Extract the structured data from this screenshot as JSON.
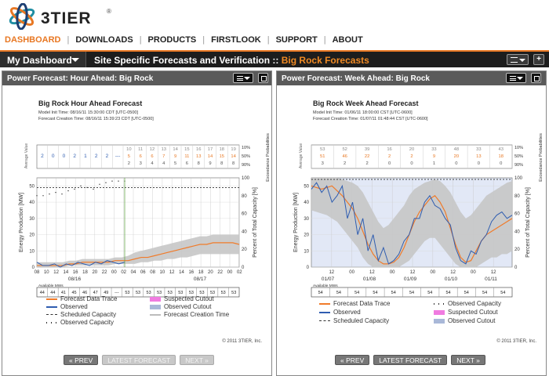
{
  "brand": {
    "name": "3TIER",
    "reg": "®",
    "colors": {
      "orange": "#e87722",
      "teal": "#1f8ea3",
      "navy": "#1c3e72"
    }
  },
  "nav": [
    {
      "label": "DASHBOARD",
      "active": true
    },
    {
      "label": "DOWNLOADS",
      "active": false
    },
    {
      "label": "PRODUCTS",
      "active": false
    },
    {
      "label": "FIRSTLOOK",
      "active": false
    },
    {
      "label": "SUPPORT",
      "active": false
    },
    {
      "label": "ABOUT",
      "active": false
    }
  ],
  "toolbar": {
    "dashboard_label": "My Dashboard",
    "crumb_prefix": "Site Specific Forecasts and Verification :: ",
    "crumb_site": "Big Rock Forecasts",
    "add_label": "+"
  },
  "panels": {
    "hour": {
      "header": "Power Forecast: Hour Ahead: Big Rock",
      "title": "Big Rock Hour Ahead Forecast",
      "model_init": "Model Init Time: 08/16/11 15:30:00 CDT [UTC-0500]",
      "creation": "Forecast Creation Time: 08/16/11 15:39:23 CDT [UTC-0500]",
      "legend": {
        "forecast": "Forecast Data Trace",
        "observed": "Observed",
        "scheduled": "Scheduled Capacity",
        "obs_capacity": "Observed Capacity",
        "suspected": "Suspected Cutout",
        "obs_cutout": "Observed Cutout",
        "creation_time": "Forecast Creation Time"
      },
      "copyright": "© 2011 3TIER, Inc.",
      "buttons": {
        "prev": "« PREV",
        "latest": "LATEST FORECAST",
        "next": "NEXT »"
      }
    },
    "week": {
      "header": "Power Forecast: Week Ahead: Big Rock",
      "title": "Big Rock Week Ahead Forecast",
      "model_init": "Model Init Time: 01/06/11 18:00:00 CST [UTC-0600]",
      "creation": "Forecast Creation Time: 01/07/11 01:48:44 CST [UTC-0600]",
      "legend": {
        "forecast": "Forecast Data Trace",
        "observed": "Observed",
        "scheduled": "Scheduled Capacity",
        "obs_capacity": "Observed Capacity",
        "suspected": "Suspected Cutout",
        "obs_cutout": "Observed Cutout"
      },
      "copyright": "© 2011 3TIER, Inc.",
      "buttons": {
        "prev": "« PREV",
        "latest": "LATEST FORECAST",
        "next": "NEXT »"
      }
    }
  },
  "chart_data": [
    {
      "type": "line",
      "title": "Big Rock Hour Ahead Forecast",
      "ylabel": "Energy Production [MW]",
      "y2label": "Percent of Total Capacity [%]",
      "top_left_label": "Average Value",
      "top_right_label": "Exceedance Probabilities",
      "exceedance_labels": [
        "10%",
        "50%",
        "90%"
      ],
      "avg_values": [
        "2",
        "0",
        "0",
        "2",
        "1",
        "2",
        "2",
        "---"
      ],
      "forecast_rows": [
        [
          "10",
          "11",
          "12",
          "13",
          "14",
          "15",
          "16",
          "17",
          "18",
          "19"
        ],
        [
          "5",
          "6",
          "6",
          "7",
          "9",
          "11",
          "13",
          "14",
          "15",
          "14"
        ],
        [
          "2",
          "3",
          "4",
          "4",
          "5",
          "6",
          "8",
          "9",
          "8",
          "8"
        ]
      ],
      "ylim": [
        0,
        55
      ],
      "y_ticks": [
        0,
        10,
        20,
        30,
        40,
        50
      ],
      "y2_ticks": [
        0,
        20,
        40,
        60,
        80,
        100
      ],
      "x_ticks": [
        "08",
        "10",
        "12",
        "14",
        "16",
        "18",
        "20",
        "22",
        "00",
        "02",
        "04",
        "06",
        "08",
        "10",
        "12",
        "14",
        "16",
        "18",
        "20",
        "22",
        "00",
        "02"
      ],
      "x_date_labels": [
        "08/16",
        "08/17"
      ],
      "forecast_start_index": 15,
      "forecast": [
        1,
        1,
        1,
        1,
        1,
        2,
        2,
        3,
        3,
        3,
        3,
        3,
        4,
        4,
        4,
        5,
        6,
        6,
        7,
        8,
        9,
        10,
        11,
        12,
        13,
        14,
        14,
        15,
        15,
        15,
        15,
        14
      ],
      "band_high": [
        3,
        3,
        3,
        3,
        3,
        4,
        4,
        5,
        5,
        5,
        5,
        5,
        6,
        6,
        7,
        9,
        10,
        11,
        12,
        13,
        14,
        15,
        16,
        17,
        18,
        19,
        19,
        20,
        20,
        20,
        20,
        20
      ],
      "band_low": [
        0,
        0,
        0,
        0,
        0,
        1,
        1,
        1,
        1,
        1,
        1,
        1,
        2,
        2,
        2,
        2,
        3,
        3,
        4,
        4,
        5,
        5,
        6,
        6,
        7,
        8,
        8,
        8,
        8,
        8,
        8,
        8
      ],
      "observed": [
        3,
        1,
        1,
        2,
        0,
        2,
        1,
        3,
        2,
        1,
        3,
        2,
        4,
        3,
        2,
        3
      ],
      "scheduled_capacity": 49,
      "observed_capacity": [
        44,
        44,
        45,
        46,
        45,
        47,
        48,
        50,
        49,
        48,
        51,
        52,
        53,
        53,
        53
      ],
      "available_mw_label": "Available MWs",
      "available_mw": [
        "44",
        "44",
        "41",
        "45",
        "46",
        "47",
        "49",
        "---",
        "53",
        "53",
        "53",
        "53",
        "53",
        "53",
        "53",
        "53",
        "53",
        "53",
        "53"
      ]
    },
    {
      "type": "line",
      "title": "Big Rock Week Ahead Forecast",
      "ylabel": "Energy Production [MW]",
      "y2label": "Percent of Total Capacity [%]",
      "top_left_label": "Average Value",
      "top_right_label": "Exceedance Probabilities",
      "exceedance_labels": [
        "10%",
        "50%",
        "90%"
      ],
      "forecast_rows": [
        [
          "53",
          "52",
          "39",
          "16",
          "20",
          "33",
          "48",
          "33",
          "43"
        ],
        [
          "51",
          "46",
          "22",
          "2",
          "2",
          "9",
          "20",
          "13",
          "18"
        ],
        [
          "3",
          "2",
          "2",
          "0",
          "0",
          "1",
          "0",
          "0",
          "0"
        ]
      ],
      "ylim": [
        0,
        55
      ],
      "y_ticks": [
        0,
        10,
        20,
        30,
        40,
        50
      ],
      "y2_ticks": [
        0,
        20,
        40,
        60,
        80,
        100
      ],
      "x_ticks": [
        "12",
        "00",
        "12",
        "00",
        "12",
        "00",
        "12",
        "00",
        "12",
        "00"
      ],
      "x_date_labels": [
        "01/07",
        "01/08",
        "01/09",
        "01/10",
        "01/11"
      ],
      "forecast": [
        50,
        49,
        48,
        49,
        50,
        47,
        44,
        40,
        36,
        30,
        22,
        14,
        8,
        4,
        2,
        2,
        3,
        6,
        12,
        20,
        28,
        34,
        38,
        42,
        44,
        40,
        34,
        24,
        14,
        6,
        3,
        4,
        10,
        16,
        20,
        22,
        24,
        26,
        28,
        30
      ],
      "band_high": [
        55,
        55,
        55,
        55,
        55,
        55,
        54,
        53,
        52,
        50,
        46,
        40,
        34,
        28,
        24,
        26,
        30,
        34,
        38,
        44,
        48,
        50,
        52,
        53,
        54,
        53,
        50,
        46,
        40,
        34,
        30,
        32,
        36,
        40,
        44,
        46,
        48,
        50,
        52,
        53
      ],
      "band_low": [
        35,
        34,
        33,
        32,
        30,
        28,
        24,
        20,
        16,
        12,
        6,
        2,
        0,
        0,
        0,
        0,
        0,
        0,
        2,
        4,
        8,
        12,
        16,
        18,
        18,
        14,
        10,
        6,
        2,
        0,
        0,
        0,
        0,
        2,
        4,
        6,
        6,
        8,
        8,
        10
      ],
      "observed": [
        48,
        52,
        46,
        50,
        40,
        44,
        50,
        30,
        40,
        20,
        30,
        10,
        20,
        4,
        12,
        2,
        4,
        8,
        16,
        20,
        30,
        30,
        40,
        44,
        38,
        36,
        30,
        26,
        12,
        4,
        2,
        10,
        8,
        16,
        20,
        28,
        32,
        34,
        30,
        32
      ],
      "scheduled_capacity": 54,
      "available_mw_label": "Available MWs",
      "available_mw": [
        "54",
        "54",
        "54",
        "54",
        "54",
        "54",
        "54",
        "54",
        "54",
        "54",
        "54"
      ]
    }
  ]
}
